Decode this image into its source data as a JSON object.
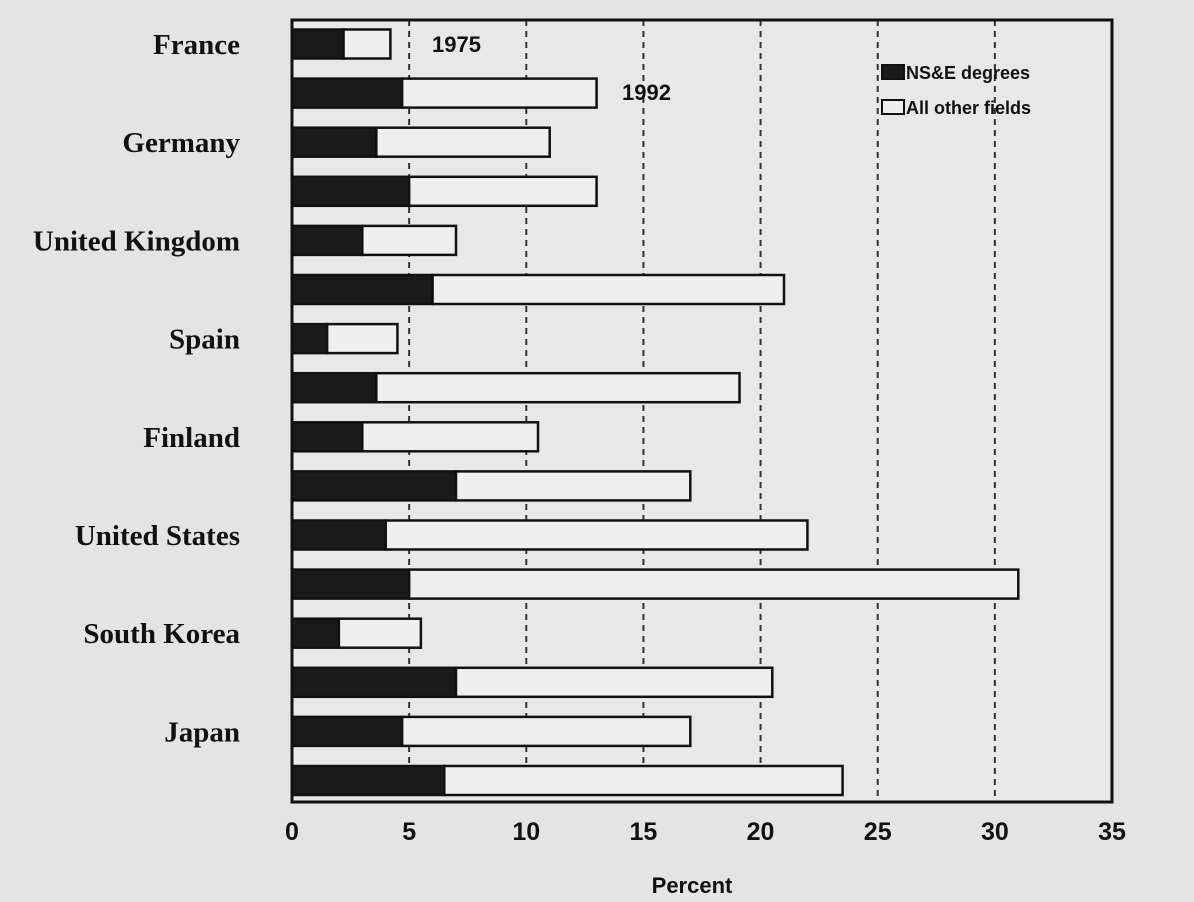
{
  "chart_data": {
    "type": "bar",
    "orientation": "horizontal",
    "stacked": true,
    "categories": [
      "France",
      "Germany",
      "United Kingdom",
      "Spain",
      "Finland",
      "United States",
      "South Korea",
      "Japan"
    ],
    "year_labels": [
      "1975",
      "1992"
    ],
    "series": [
      {
        "name": "NS&E degrees",
        "color": "#1a1a1a",
        "values_1975": [
          2.2,
          3.6,
          3.0,
          1.5,
          3.0,
          4.0,
          2.0,
          4.7
        ],
        "values_1992": [
          4.7,
          5.0,
          6.0,
          3.6,
          7.0,
          5.0,
          7.0,
          6.5
        ]
      },
      {
        "name": "All other fields",
        "color": "#efefed",
        "values_1975": [
          2.0,
          7.4,
          4.0,
          3.0,
          7.5,
          18.0,
          3.5,
          12.3
        ],
        "values_1992": [
          8.3,
          8.0,
          15.0,
          15.5,
          10.0,
          26.0,
          13.5,
          17.0
        ]
      }
    ],
    "xlabel": "Percent",
    "ylabel": "",
    "xlim": [
      0,
      35
    ],
    "xticks": [
      "0",
      "5",
      "10",
      "15",
      "20",
      "25",
      "30",
      "35"
    ],
    "grid": "vertical dashed",
    "legend_position": "top-right"
  }
}
